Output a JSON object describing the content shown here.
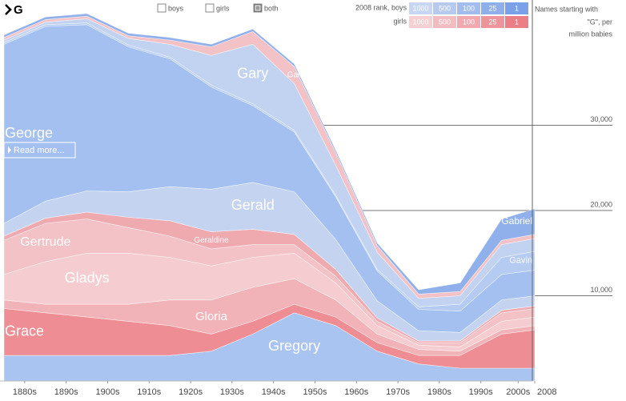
{
  "ui": {
    "search": "G",
    "filters": [
      "boys",
      "girls",
      "both"
    ],
    "checked": [
      false,
      false,
      true
    ],
    "rank_label_boys": "2008 rank, boys",
    "rank_label_girls": "girls",
    "rank_boys": [
      "1000",
      "500",
      "100",
      "25",
      "1"
    ],
    "rank_girls": [
      "1000",
      "500",
      "100",
      "25",
      "1"
    ],
    "read_more": "Read more...",
    "units_note": [
      "Names starting with",
      "\"G\", per",
      "million babies"
    ]
  },
  "chart_data": {
    "type": "stacked-area",
    "x": [
      1880,
      1890,
      1900,
      1910,
      1920,
      1930,
      1940,
      1950,
      1960,
      1970,
      1980,
      1990,
      2000,
      2008
    ],
    "xlim": [
      1880,
      2008
    ],
    "xticks": [
      {
        "value": 1885,
        "label": "1880s"
      },
      {
        "value": 1895,
        "label": "1890s"
      },
      {
        "value": 1905,
        "label": "1900s"
      },
      {
        "value": 1915,
        "label": "1910s"
      },
      {
        "value": 1925,
        "label": "1920s"
      },
      {
        "value": 1935,
        "label": "1930s"
      },
      {
        "value": 1945,
        "label": "1940s"
      },
      {
        "value": 1955,
        "label": "1950s"
      },
      {
        "value": 1965,
        "label": "1960s"
      },
      {
        "value": 1975,
        "label": "1970s"
      },
      {
        "value": 1985,
        "label": "1980s"
      },
      {
        "value": 1995,
        "label": "1990s"
      },
      {
        "value": 2004,
        "label": "2000s"
      },
      2008
    ],
    "ylim": [
      0,
      41000
    ],
    "yticks": [
      {
        "value": 10000,
        "label": "10,000"
      },
      {
        "value": 20000,
        "label": "20,000"
      },
      {
        "value": 30000,
        "label": "30,000"
      }
    ],
    "grid": true,
    "series": [
      {
        "name": "Gregory",
        "color": "#a9c4f0",
        "values": [
          3000,
          3000,
          3000,
          3000,
          3000,
          3500,
          5500,
          8000,
          6500,
          3500,
          2000,
          1500,
          1500,
          1500
        ]
      },
      {
        "name": "Grace",
        "color": "#ee8d93",
        "values": [
          5500,
          5000,
          4500,
          4000,
          3500,
          2000,
          1500,
          1000,
          1000,
          1000,
          1000,
          1500,
          4000,
          4500
        ]
      },
      {
        "name": "Gloria",
        "color": "#f2b3b8",
        "values": [
          1000,
          1000,
          1500,
          2000,
          3000,
          4000,
          4000,
          3000,
          2000,
          1000,
          700,
          500,
          500,
          500
        ]
      },
      {
        "name": "Gladys",
        "color": "#f5cdd0",
        "values": [
          3000,
          5000,
          6000,
          6000,
          5000,
          4000,
          3500,
          3000,
          2000,
          1000,
          500,
          500,
          1000,
          1000
        ]
      },
      {
        "name": "Gertrude",
        "color": "#f3c2c6",
        "values": [
          4000,
          4500,
          4000,
          3000,
          2500,
          2000,
          1500,
          1000,
          800,
          500,
          300,
          500,
          1000,
          1000
        ]
      },
      {
        "name": "Geraldine",
        "color": "#efaab0",
        "values": [
          500,
          600,
          800,
          1200,
          1800,
          2000,
          1800,
          1200,
          800,
          400,
          200,
          200,
          300,
          300
        ]
      },
      {
        "name": "Gerald",
        "color": "#c4d4f0",
        "values": [
          1500,
          2000,
          2500,
          3000,
          4000,
          5000,
          5500,
          5000,
          3500,
          2000,
          1200,
          1000,
          1200,
          1200
        ]
      },
      {
        "name": "George",
        "color": "#a4c0f0",
        "values": [
          21000,
          20500,
          19500,
          17000,
          15000,
          12000,
          9000,
          7000,
          5000,
          3500,
          2500,
          2500,
          3000,
          3000
        ]
      },
      {
        "name": "Gavin",
        "color": "#b5cbf2",
        "values": [
          200,
          200,
          200,
          200,
          200,
          200,
          200,
          200,
          200,
          200,
          300,
          800,
          2000,
          2200
        ]
      },
      {
        "name": "Gary",
        "color": "#c2d3f2",
        "values": [
          300,
          300,
          500,
          800,
          1500,
          3500,
          7000,
          5500,
          3500,
          2000,
          1000,
          1000,
          1500,
          1500
        ]
      },
      {
        "name": "Gail",
        "color": "#f2c2c6",
        "values": [
          300,
          300,
          300,
          300,
          500,
          1000,
          1500,
          2000,
          1500,
          800,
          500,
          500,
          500,
          500
        ]
      },
      {
        "name": "Gabriel",
        "color": "#8fb0ea",
        "values": [
          300,
          300,
          300,
          300,
          300,
          300,
          300,
          300,
          300,
          300,
          500,
          1000,
          2500,
          3000
        ]
      }
    ]
  }
}
